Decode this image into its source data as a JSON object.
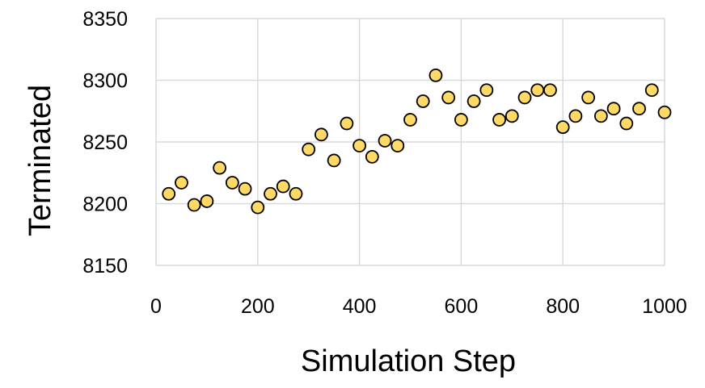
{
  "chart_data": {
    "type": "scatter",
    "title": "",
    "xlabel": "Simulation Step",
    "ylabel": "Terminated",
    "xlim": [
      0,
      1000
    ],
    "ylim": [
      8150,
      8350
    ],
    "xticks": [
      0,
      200,
      400,
      600,
      800,
      1000
    ],
    "yticks": [
      8150,
      8200,
      8250,
      8300,
      8350
    ],
    "grid": true,
    "marker_fill": "#FFD966",
    "marker_stroke": "#000000",
    "grid_color": "#d9d9d9",
    "series": [
      {
        "x": [
          25,
          50,
          75,
          100,
          125,
          150,
          175,
          200,
          225,
          250,
          275,
          300,
          325,
          350,
          375,
          400,
          425,
          450,
          475,
          500,
          525,
          550,
          575,
          600,
          625,
          650,
          675,
          700,
          725,
          750,
          775,
          800,
          825,
          850,
          875,
          900,
          925,
          950,
          975,
          1000
        ],
        "y": [
          8208,
          8217,
          8199,
          8202,
          8229,
          8217,
          8212,
          8197,
          8208,
          8214,
          8208,
          8244,
          8256,
          8235,
          8265,
          8247,
          8238,
          8251,
          8247,
          8268,
          8283,
          8304,
          8286,
          8268,
          8283,
          8292,
          8268,
          8271,
          8286,
          8292,
          8292,
          8262,
          8271,
          8286,
          8271,
          8277,
          8265,
          8277,
          8292,
          8274
        ]
      }
    ]
  }
}
